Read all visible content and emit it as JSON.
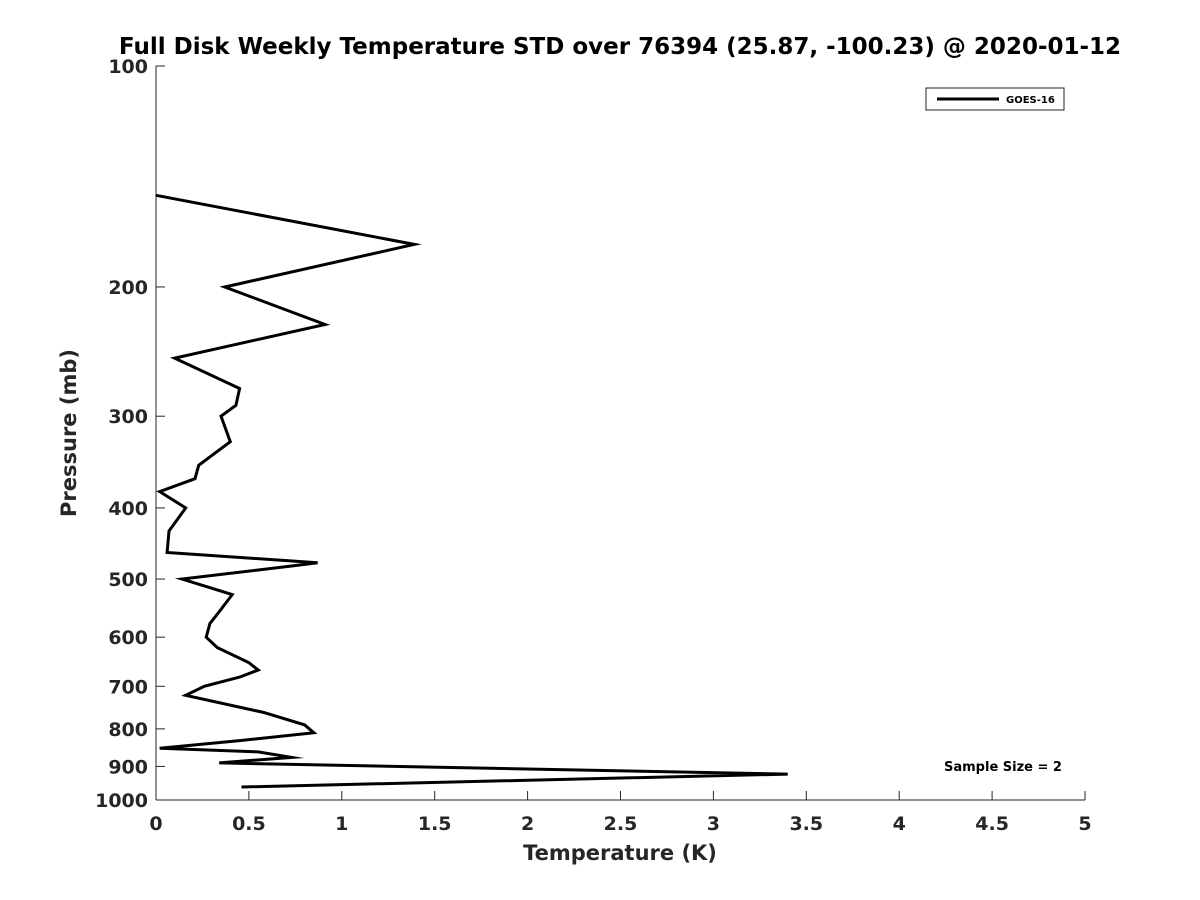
{
  "chart_data": {
    "type": "line",
    "title": "Full Disk Weekly Temperature STD over 76394 (25.87, -100.23) @ 2020-01-12",
    "xlabel": "Temperature (K)",
    "ylabel": "Pressure (mb)",
    "xlim": [
      0,
      5
    ],
    "ylim": [
      100,
      1000
    ],
    "yscale": "log",
    "y_reversed": true,
    "grid": false,
    "legend_position": "top-right",
    "x_ticks": [
      0,
      0.5,
      1,
      1.5,
      2,
      2.5,
      3,
      3.5,
      4,
      4.5,
      5
    ],
    "x_tick_labels": [
      "0",
      "0.5",
      "1",
      "1.5",
      "2",
      "2.5",
      "3",
      "3.5",
      "4",
      "4.5",
      "5"
    ],
    "y_ticks": [
      100,
      200,
      300,
      400,
      500,
      600,
      700,
      800,
      900,
      1000
    ],
    "y_tick_labels": [
      "100",
      "200",
      "300",
      "400",
      "500",
      "600",
      "700",
      "800",
      "900",
      "1000"
    ],
    "series": [
      {
        "name": "GOES-16",
        "color": "#000000",
        "points": [
          {
            "x": 0.0,
            "y": 150
          },
          {
            "x": 1.39,
            "y": 175
          },
          {
            "x": 0.37,
            "y": 200
          },
          {
            "x": 0.91,
            "y": 225
          },
          {
            "x": 0.1,
            "y": 250
          },
          {
            "x": 0.45,
            "y": 275
          },
          {
            "x": 0.43,
            "y": 290
          },
          {
            "x": 0.35,
            "y": 300
          },
          {
            "x": 0.4,
            "y": 325
          },
          {
            "x": 0.23,
            "y": 350
          },
          {
            "x": 0.21,
            "y": 365
          },
          {
            "x": 0.02,
            "y": 380
          },
          {
            "x": 0.16,
            "y": 400
          },
          {
            "x": 0.07,
            "y": 430
          },
          {
            "x": 0.06,
            "y": 460
          },
          {
            "x": 0.87,
            "y": 475
          },
          {
            "x": 0.73,
            "y": 480
          },
          {
            "x": 0.14,
            "y": 500
          },
          {
            "x": 0.41,
            "y": 525
          },
          {
            "x": 0.35,
            "y": 550
          },
          {
            "x": 0.29,
            "y": 575
          },
          {
            "x": 0.27,
            "y": 600
          },
          {
            "x": 0.33,
            "y": 620
          },
          {
            "x": 0.5,
            "y": 650
          },
          {
            "x": 0.55,
            "y": 665
          },
          {
            "x": 0.45,
            "y": 680
          },
          {
            "x": 0.26,
            "y": 700
          },
          {
            "x": 0.16,
            "y": 720
          },
          {
            "x": 0.58,
            "y": 760
          },
          {
            "x": 0.8,
            "y": 790
          },
          {
            "x": 0.85,
            "y": 810
          },
          {
            "x": 0.45,
            "y": 830
          },
          {
            "x": 0.02,
            "y": 850
          },
          {
            "x": 0.55,
            "y": 860
          },
          {
            "x": 0.73,
            "y": 875
          },
          {
            "x": 0.34,
            "y": 890
          },
          {
            "x": 3.4,
            "y": 922
          },
          {
            "x": 0.46,
            "y": 960
          }
        ]
      }
    ],
    "annotation": "Sample Size = 2"
  }
}
